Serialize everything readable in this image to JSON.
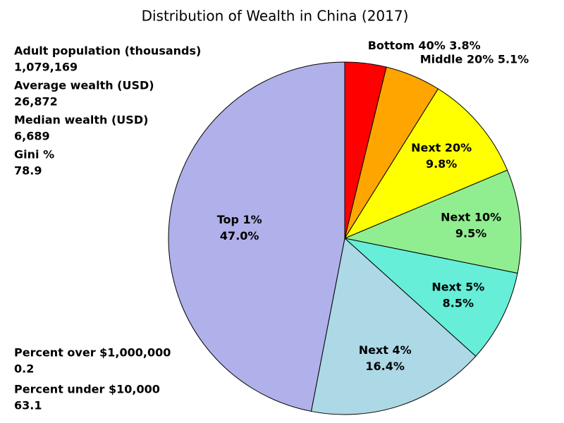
{
  "chart_data": {
    "type": "pie",
    "title": "Distribution of Wealth in China (2017)",
    "categories": [
      "Bottom 40%",
      "Middle 20%",
      "Next 20%",
      "Next 10%",
      "Next 5%",
      "Next 4%",
      "Top 1%"
    ],
    "values": [
      3.8,
      5.1,
      9.8,
      9.5,
      8.5,
      16.4,
      47.0
    ],
    "value_labels": [
      "3.8%",
      "5.1%",
      "9.8%",
      "9.5%",
      "8.5%",
      "16.4%",
      "47.0%"
    ],
    "colors": [
      "#ff0000",
      "#ffa500",
      "#ffff00",
      "#90ee90",
      "#66eed8",
      "#add8e6",
      "#b0b0ea"
    ],
    "stats": [
      {
        "label": "Adult population (thousands)",
        "value": "1,079,169"
      },
      {
        "label": "Average wealth (USD)",
        "value": "26,872"
      },
      {
        "label": "Median wealth (USD)",
        "value": "6,689"
      },
      {
        "label": "Gini %",
        "value": "78.9"
      },
      {
        "label": "Percent over $1,000,000",
        "value": "0.2"
      },
      {
        "label": "Percent under $10,000",
        "value": "63.1"
      }
    ]
  }
}
